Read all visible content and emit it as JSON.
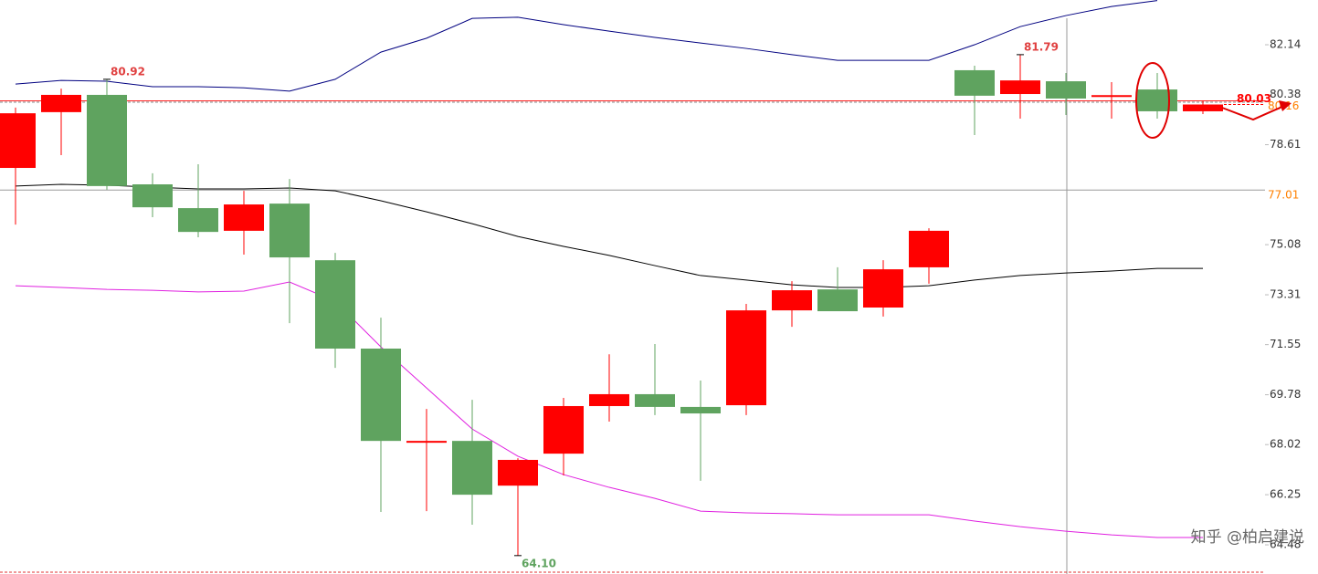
{
  "chart_data": {
    "type": "candlestick",
    "up_color": "#ff0000",
    "down_color": "#5fa35f",
    "ylim": [
      63.45,
      83.72
    ],
    "yticks": [
      82.14,
      80.38,
      78.61,
      75.08,
      73.31,
      71.55,
      69.78,
      68.02,
      66.25,
      {
        "value": 64.48,
        "label": "64.48"
      }
    ],
    "candles": [
      {
        "open": 77.79,
        "high": 79.92,
        "low": 75.79,
        "close": 79.72
      },
      {
        "open": 79.76,
        "high": 80.59,
        "low": 78.24,
        "close": 80.37
      },
      {
        "open": 80.37,
        "high": 80.92,
        "low": 77.02,
        "close": 77.15
      },
      {
        "open": 77.21,
        "high": 77.6,
        "low": 76.05,
        "close": 76.4
      },
      {
        "open": 76.37,
        "high": 77.92,
        "low": 75.34,
        "close": 75.53
      },
      {
        "open": 75.57,
        "high": 76.98,
        "low": 74.73,
        "close": 76.5
      },
      {
        "open": 76.53,
        "high": 77.4,
        "low": 72.31,
        "close": 74.63
      },
      {
        "open": 74.53,
        "high": 74.79,
        "low": 70.73,
        "close": 71.41
      },
      {
        "open": 71.41,
        "high": 72.5,
        "low": 65.64,
        "close": 68.15
      },
      {
        "open": 68.12,
        "high": 69.28,
        "low": 65.67,
        "close": 68.15
      },
      {
        "open": 68.15,
        "high": 69.6,
        "low": 65.19,
        "close": 66.25
      },
      {
        "open": 66.57,
        "high": 67.54,
        "low": 64.1,
        "close": 67.48
      },
      {
        "open": 67.7,
        "high": 69.67,
        "low": 66.93,
        "close": 69.38
      },
      {
        "open": 69.38,
        "high": 71.21,
        "low": 68.83,
        "close": 69.8
      },
      {
        "open": 69.8,
        "high": 71.57,
        "low": 69.06,
        "close": 69.35
      },
      {
        "open": 69.35,
        "high": 70.28,
        "low": 66.74,
        "close": 69.12
      },
      {
        "open": 69.41,
        "high": 72.99,
        "low": 69.06,
        "close": 72.76
      },
      {
        "open": 72.76,
        "high": 73.79,
        "low": 72.18,
        "close": 73.47
      },
      {
        "open": 73.5,
        "high": 74.28,
        "low": 72.73,
        "close": 72.73
      },
      {
        "open": 72.86,
        "high": 74.53,
        "low": 72.54,
        "close": 74.21
      },
      {
        "open": 74.28,
        "high": 75.66,
        "low": 73.7,
        "close": 75.57
      },
      {
        "open": 81.24,
        "high": 81.4,
        "low": 78.95,
        "close": 80.34
      },
      {
        "open": 80.4,
        "high": 81.79,
        "low": 79.53,
        "close": 80.88
      },
      {
        "open": 80.85,
        "high": 81.14,
        "low": 79.66,
        "close": 80.24
      },
      {
        "open": 80.34,
        "high": 80.82,
        "low": 79.53,
        "close": 80.36
      },
      {
        "open": 80.56,
        "high": 81.14,
        "low": 79.53,
        "close": 79.79
      },
      {
        "open": 79.79,
        "high": 80.17,
        "low": 79.69,
        "close": 80.03
      }
    ],
    "lines": [
      {
        "color": "#000080",
        "values": [
          80.75,
          80.88,
          80.85,
          80.66,
          80.66,
          80.62,
          80.5,
          80.92,
          81.88,
          82.37,
          83.07,
          83.11,
          82.85,
          82.62,
          82.4,
          82.2,
          82.01,
          81.79,
          81.59,
          81.59,
          81.59,
          82.14,
          82.78,
          83.17,
          83.49,
          83.7,
          null
        ]
      },
      {
        "color": "#000000",
        "values": [
          77.15,
          77.21,
          77.18,
          77.11,
          77.05,
          77.05,
          77.08,
          76.98,
          76.63,
          76.24,
          75.82,
          75.37,
          75.02,
          74.7,
          74.34,
          73.99,
          73.83,
          73.66,
          73.57,
          73.57,
          73.63,
          73.83,
          73.99,
          74.08,
          74.15,
          74.24,
          74.24
        ]
      },
      {
        "color": "#e020e0",
        "values": [
          73.63,
          73.57,
          73.5,
          73.47,
          73.41,
          73.44,
          73.76,
          73.08,
          71.47,
          70.02,
          68.57,
          67.61,
          66.96,
          66.51,
          66.12,
          65.67,
          65.61,
          65.58,
          65.54,
          65.54,
          65.54,
          65.32,
          65.12,
          64.96,
          64.83,
          64.74,
          64.74
        ]
      }
    ],
    "point_labels": [
      {
        "value": 80.92,
        "color": "#e04040"
      },
      {
        "value": 81.79,
        "color": "#e04040"
      },
      {
        "value": 64.1,
        "label": "64.10",
        "color": "#5fa35f"
      }
    ],
    "price_lines": [
      {
        "value": 80.16,
        "color": "#ff8000",
        "line_color": "#ff2020"
      },
      {
        "value": 77.01,
        "color": "#ff8000",
        "line_color": "#999999"
      }
    ],
    "last_price": {
      "value": 80.03,
      "color": "#ff0000"
    },
    "watermark": "知乎 @柏启建说"
  }
}
